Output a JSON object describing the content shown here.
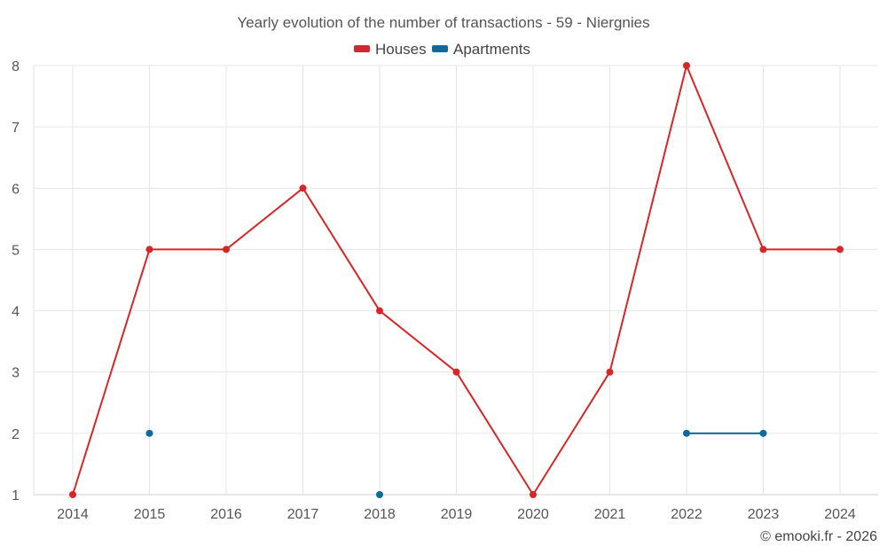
{
  "chart_data": {
    "type": "line",
    "title": "Yearly evolution of the number of transactions - 59 - Niergnies",
    "xlabel": "",
    "ylabel": "",
    "categories": [
      "2014",
      "2015",
      "2016",
      "2017",
      "2018",
      "2019",
      "2020",
      "2021",
      "2022",
      "2023",
      "2024"
    ],
    "ylim": [
      1,
      8
    ],
    "yticks": [
      "1",
      "2",
      "3",
      "4",
      "5",
      "6",
      "7",
      "8"
    ],
    "grid": true,
    "legend_position": "top-center",
    "series": [
      {
        "name": "Houses",
        "color": "#d62728",
        "values": [
          1,
          5,
          5,
          6,
          4,
          3,
          1,
          3,
          8,
          5,
          5
        ]
      },
      {
        "name": "Apartments",
        "color": "#0d6a9a",
        "values": [
          null,
          2,
          null,
          null,
          1,
          null,
          null,
          null,
          2,
          2,
          null
        ]
      }
    ],
    "credit": "© emooki.fr - 2026"
  }
}
